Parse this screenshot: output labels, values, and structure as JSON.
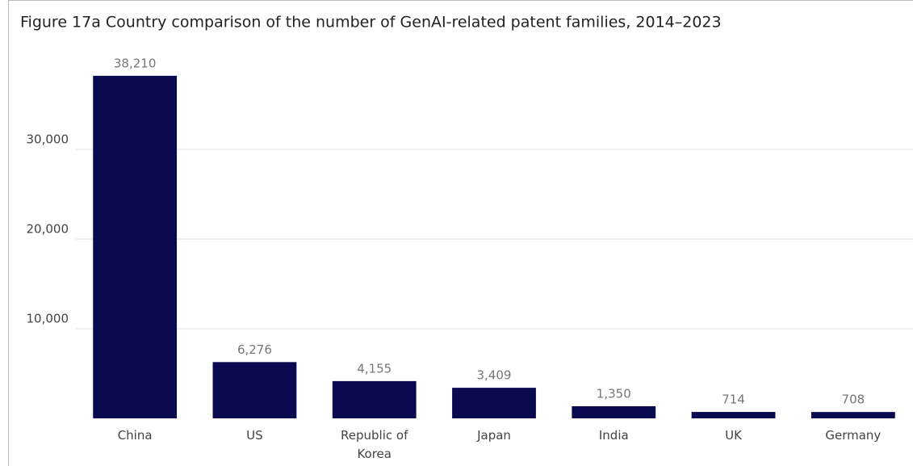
{
  "chart_data": {
    "type": "bar",
    "title": "Figure 17a Country comparison of the number of GenAI-related patent families, 2014–2023",
    "categories": [
      "China",
      "US",
      "Republic of Korea",
      "Japan",
      "India",
      "UK",
      "Germany"
    ],
    "values": [
      38210,
      6276,
      4155,
      3409,
      1350,
      714,
      708
    ],
    "value_labels": [
      "38,210",
      "6,276",
      "4,155",
      "3,409",
      "1,350",
      "714",
      "708"
    ],
    "color": "#0a0a50",
    "ylim": [
      0,
      40000
    ],
    "yticks": [
      {
        "value": 10000,
        "label": "10,000"
      },
      {
        "value": 20000,
        "label": "20,000"
      },
      {
        "value": 30000,
        "label": "30,000"
      }
    ],
    "grid": true
  }
}
